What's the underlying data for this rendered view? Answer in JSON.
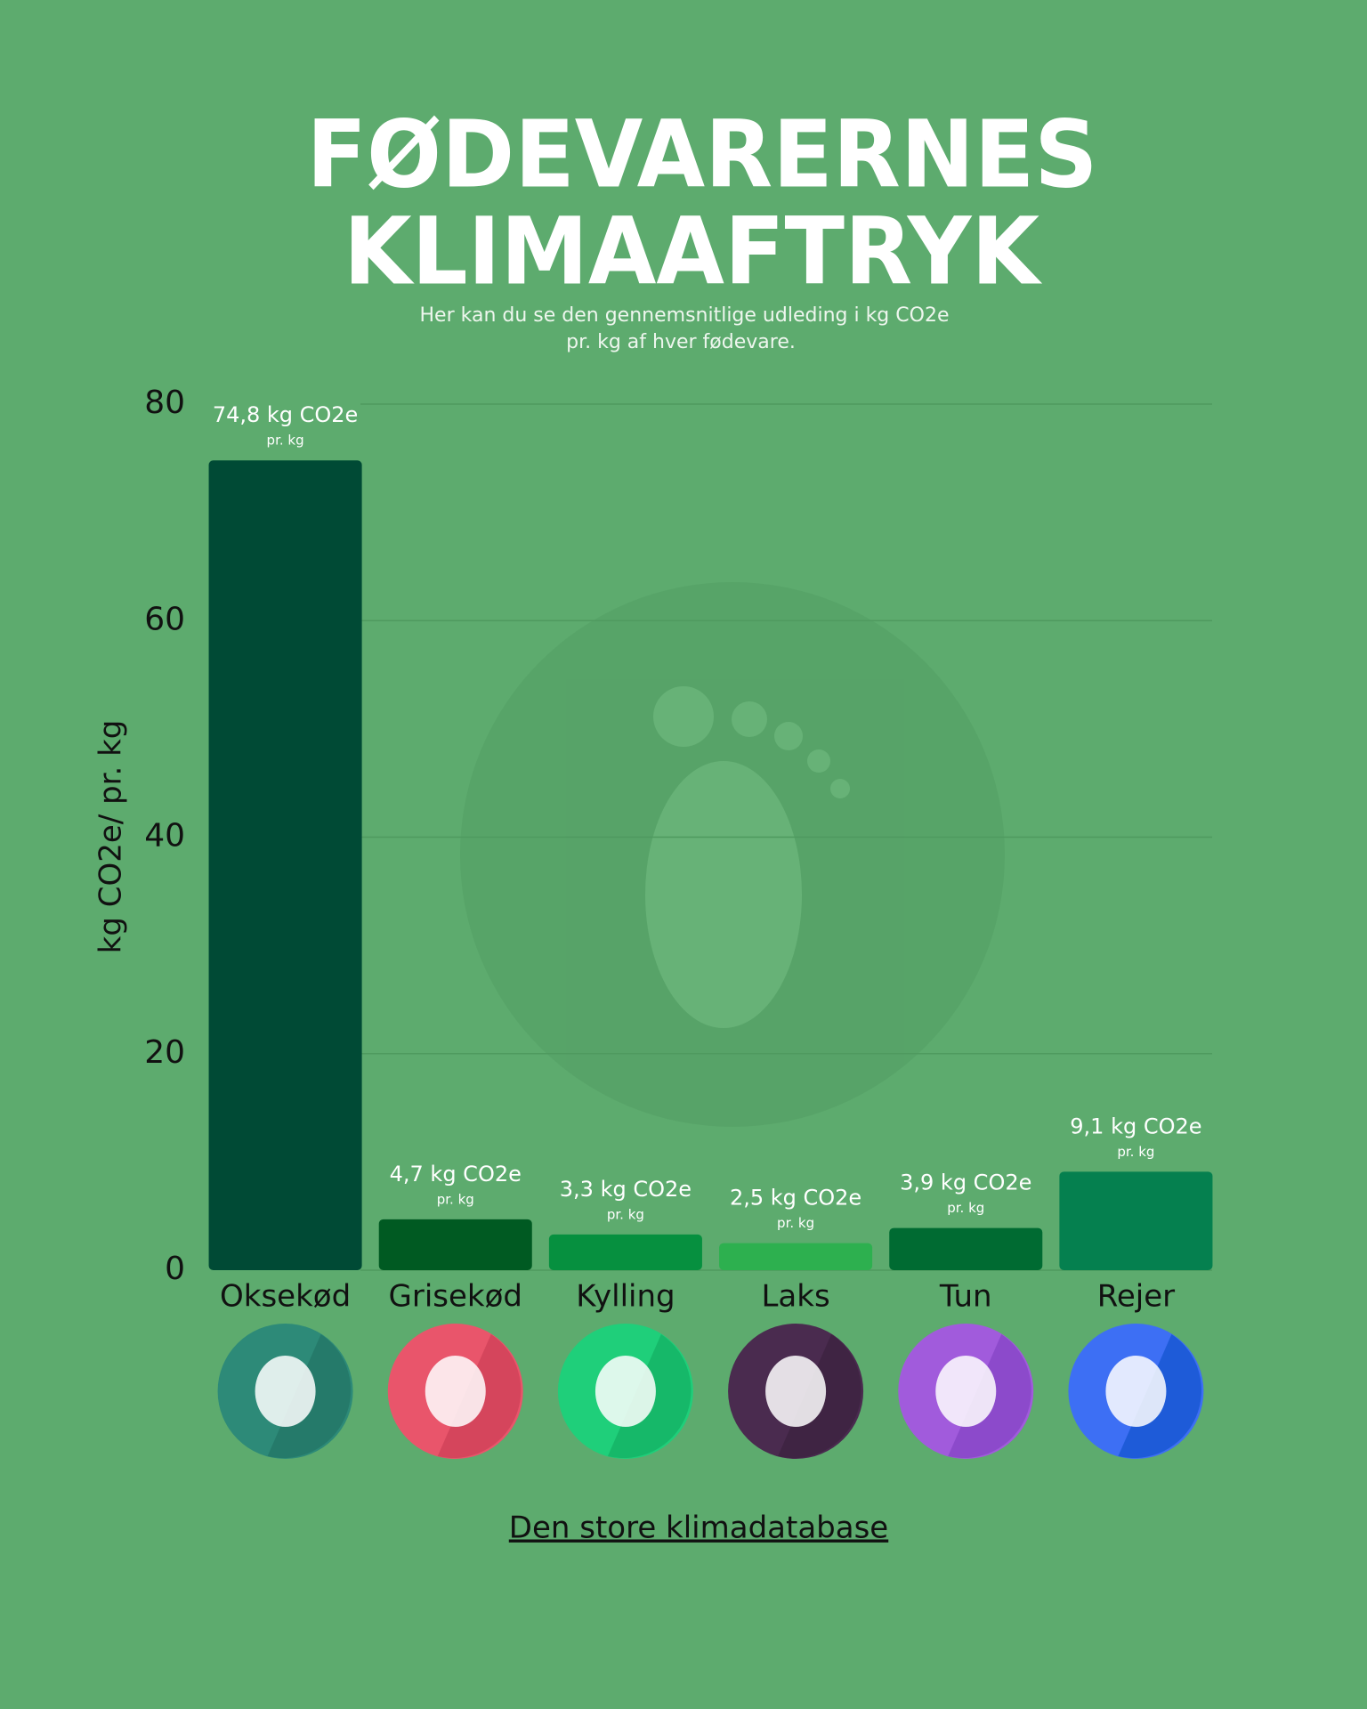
{
  "title": [
    "FØDEVARERNES",
    "KLIMAAFTRYK"
  ],
  "subtitle": [
    "Her kan du se den gennemsnitlige udleding i kg CO2e",
    "pr. kg af hver fødevare."
  ],
  "chart_data": {
    "type": "bar",
    "y_label": "kg CO2e/ pr. kg",
    "categories": [
      "Oksekød",
      "Grisekød",
      "Kylling",
      "Laks",
      "Tun",
      "Rejer"
    ],
    "values": [
      74.8,
      4.7,
      3.3,
      2.5,
      3.9,
      9.1
    ],
    "value_labels": [
      "74,8 kg CO2e",
      "4,7 kg CO2e",
      "3,3 kg CO2e",
      "2,5 kg CO2e",
      "3,9 kg CO2e",
      "9,1 kg CO2e"
    ],
    "value_note": "pr. kg",
    "colors": [
      "#004a35",
      "#005a22",
      "#06903f",
      "#2db04f",
      "#006b32",
      "#05804f"
    ],
    "ylim": [
      0,
      80
    ],
    "yticks": [
      0,
      20,
      40,
      60,
      80
    ],
    "grid": true
  },
  "source_link": "Den store klimadatabase"
}
